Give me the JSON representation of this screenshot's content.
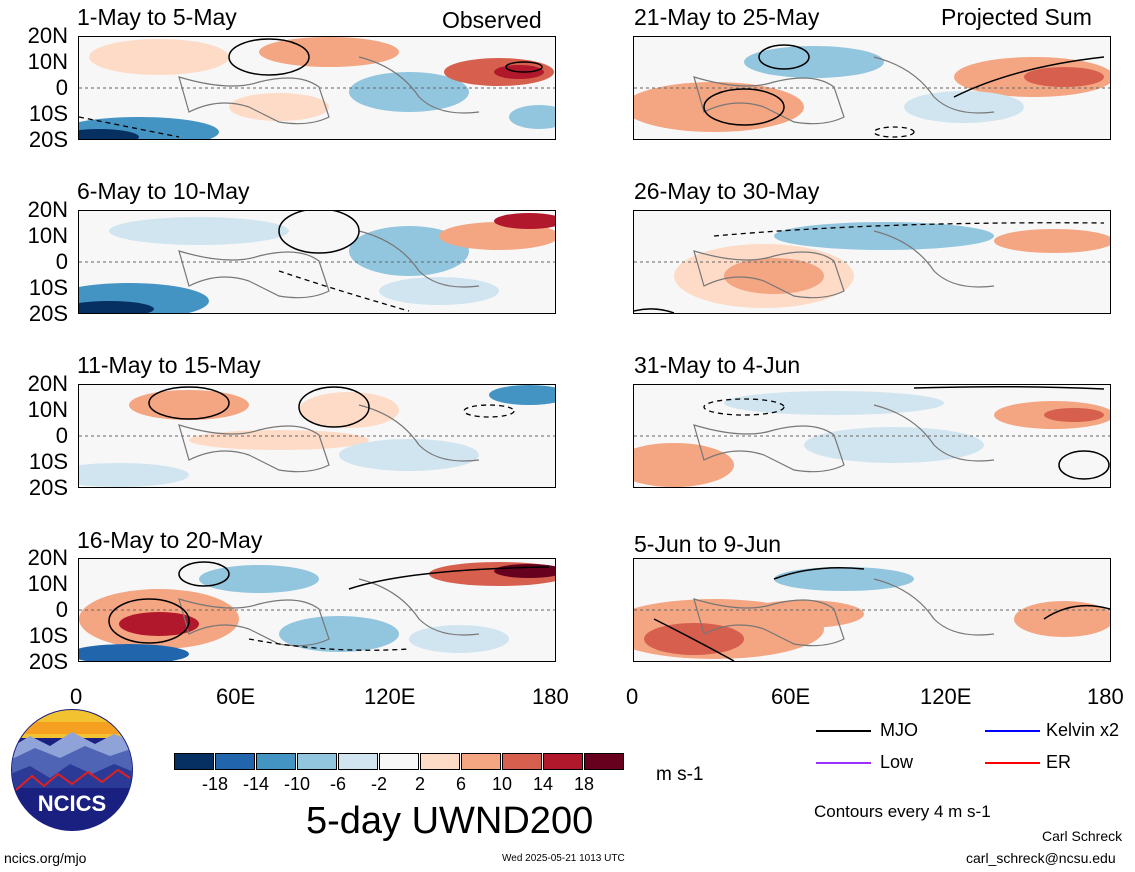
{
  "panels_left": [
    {
      "title": "1-May to 5-May",
      "tag": "Observed"
    },
    {
      "title": "6-May to 10-May",
      "tag": ""
    },
    {
      "title": "11-May to 15-May",
      "tag": ""
    },
    {
      "title": "16-May to 20-May",
      "tag": ""
    }
  ],
  "panels_right": [
    {
      "title": "21-May to 25-May",
      "tag": "Projected Sum"
    },
    {
      "title": "26-May to 30-May",
      "tag": ""
    },
    {
      "title": "31-May to 4-Jun",
      "tag": ""
    },
    {
      "title": "5-Jun to 9-Jun",
      "tag": ""
    }
  ],
  "lat_labels": [
    "20N",
    "10N",
    "0",
    "10S",
    "20S"
  ],
  "lon_labels": [
    "0",
    "60E",
    "120E",
    "180"
  ],
  "colorbar": {
    "colors": [
      "#053061",
      "#2166ac",
      "#4393c3",
      "#92c5de",
      "#d1e5f0",
      "#f7f7f7",
      "#fddbc7",
      "#f4a582",
      "#d6604d",
      "#b2182b",
      "#67001f"
    ],
    "labels": [
      "-18",
      "-14",
      "-10",
      "-6",
      "-2",
      "2",
      "6",
      "10",
      "14",
      "18"
    ],
    "units": "m s-1"
  },
  "main_title": "5-day UWND200",
  "legend": {
    "items": [
      {
        "label": "MJO",
        "color": "#000000"
      },
      {
        "label": "Kelvin x2",
        "color": "#0000ff"
      },
      {
        "label": "Low",
        "color": "#9b30ff"
      },
      {
        "label": "ER",
        "color": "#ff0000"
      }
    ],
    "contour_note": "Contours every 4 m s-1"
  },
  "logo_text": "NCICS",
  "footer": {
    "url": "ncics.org/mjo",
    "timestamp": "Wed 2025-05-21 1013 UTC",
    "author": "Carl Schreck",
    "email": "carl_schreck@ncsu.edu"
  }
}
